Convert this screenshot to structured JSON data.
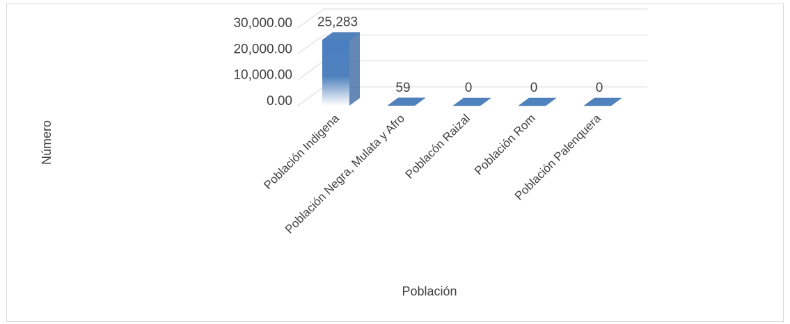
{
  "chart_data": {
    "type": "bar3d",
    "categories": [
      "Población Indigena",
      "Población Negra, Mulata y Afro",
      "Poblacón Raizal",
      "Población Rom",
      "Población Palenquera"
    ],
    "values": [
      25283,
      59,
      0,
      0,
      0
    ],
    "value_labels": [
      "25,283",
      "59",
      "0",
      "0",
      "0"
    ],
    "color": "#4f81bd",
    "ylim": [
      0,
      30000
    ],
    "yticks": [
      {
        "value": 0,
        "label": "0.00"
      },
      {
        "value": 10000,
        "label": "10,000.00"
      },
      {
        "value": 20000,
        "label": "20,000.00"
      },
      {
        "value": 30000,
        "label": "30,000.00"
      }
    ],
    "ylabel": "Número",
    "xlabel": "Población",
    "grid": true
  }
}
